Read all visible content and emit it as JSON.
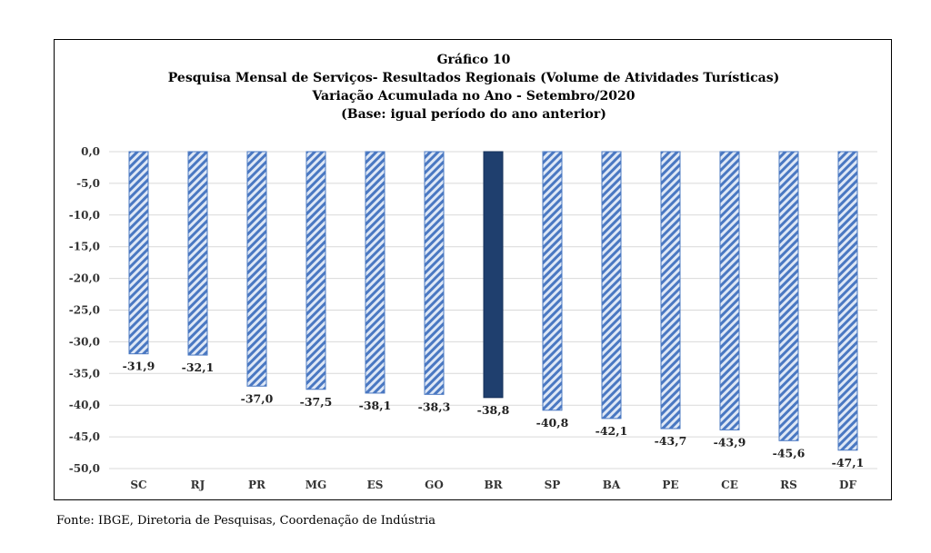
{
  "chart_data": {
    "type": "bar",
    "title_lines": [
      "Gráfico 10",
      "Pesquisa Mensal de Serviços- Resultados Regionais (Volume de Atividades Turísticas)",
      "Variação Acumulada no Ano - Setembro/2020",
      "(Base: igual período do ano anterior)"
    ],
    "categories": [
      "SC",
      "RJ",
      "PR",
      "MG",
      "ES",
      "GO",
      "BR",
      "SP",
      "BA",
      "PE",
      "CE",
      "RS",
      "DF"
    ],
    "values": [
      -31.9,
      -32.1,
      -37.0,
      -37.5,
      -38.1,
      -38.3,
      -38.8,
      -40.8,
      -42.1,
      -43.7,
      -43.9,
      -45.6,
      -47.1
    ],
    "value_labels": [
      "-31,9",
      "-32,1",
      "-37,0",
      "-37,5",
      "-38,1",
      "-38,3",
      "-38,8",
      "-40,8",
      "-42,1",
      "-43,7",
      "-43,9",
      "-45,6",
      "-47,1"
    ],
    "highlight_category": "BR",
    "ylim": [
      -50,
      0
    ],
    "yticks": [
      0,
      -5,
      -10,
      -15,
      -20,
      -25,
      -30,
      -35,
      -40,
      -45,
      -50
    ],
    "ytick_labels": [
      "0,0",
      "-5,0",
      "-10,0",
      "-15,0",
      "-20,0",
      "-25,0",
      "-30,0",
      "-35,0",
      "-40,0",
      "-45,0",
      "-50,0"
    ],
    "grid": true,
    "xlabel": "",
    "ylabel": "",
    "colors": {
      "hatch_fg": "#4a78c2",
      "hatch_bg": "#dfe8f6",
      "highlight": "#1f3f6e",
      "gridline": "#d9d9d9"
    }
  },
  "source": "Fonte: IBGE, Diretoria de Pesquisas, Coordenação de Indústria"
}
